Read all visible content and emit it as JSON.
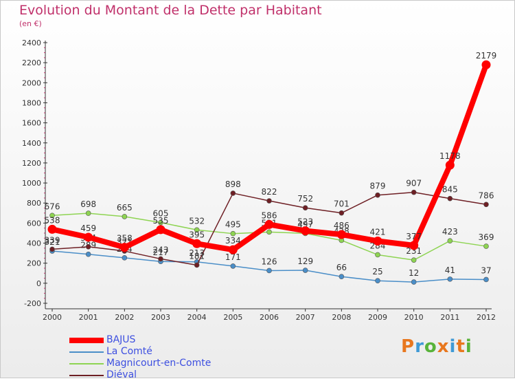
{
  "header": {
    "title": "Evolution du Montant de la Dette par Habitant",
    "subtitle": "(en €)"
  },
  "logo": {
    "text": "Proxiti",
    "letter_colors": [
      "#e8771e",
      "#3f9ad6",
      "#58b33a",
      "#e8771e",
      "#3f9ad6",
      "#e8771e",
      "#58b33a"
    ]
  },
  "chart_data": {
    "type": "line",
    "x": [
      "2000",
      "2001",
      "2002",
      "2003",
      "2004",
      "2005",
      "2006",
      "2007",
      "2008",
      "2009",
      "2010",
      "2011",
      "2012"
    ],
    "ylim": [
      -200,
      2400
    ],
    "yticks": [
      -200,
      0,
      200,
      400,
      600,
      800,
      1000,
      1200,
      1400,
      1600,
      1800,
      2000,
      2200,
      2400
    ],
    "grid": false,
    "legend_position": "bottom-left",
    "series": [
      {
        "name": "BAJUS",
        "color": "#ff0000",
        "emphasis": true,
        "values": [
          538,
          459,
          358,
          535,
          395,
          334,
          586,
          523,
          486,
          421,
          377,
          1178,
          2179
        ]
      },
      {
        "name": "La Comté",
        "color": "#4a8ec8",
        "values": [
          321,
          289,
          254,
          217,
          213,
          171,
          126,
          129,
          66,
          25,
          12,
          41,
          37
        ]
      },
      {
        "name": "Magnicourt-en-Comte",
        "color": "#8ed452",
        "values": [
          676,
          698,
          665,
          605,
          532,
          495,
          511,
          497,
          428,
          284,
          231,
          423,
          369
        ]
      },
      {
        "name": "Diéval",
        "color": "#6e1f24",
        "values": [
          339,
          364,
          321,
          243,
          181,
          898,
          822,
          752,
          701,
          879,
          907,
          845,
          786
        ]
      }
    ]
  }
}
